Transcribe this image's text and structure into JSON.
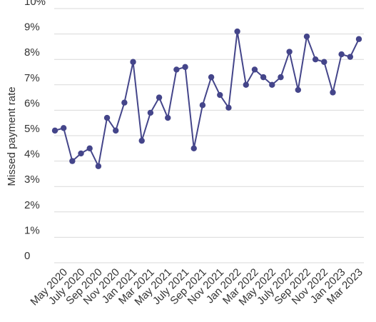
{
  "chart_data": {
    "type": "line",
    "title": "",
    "xlabel": "",
    "ylabel": "Missed payment rate",
    "ylim": [
      0,
      10
    ],
    "y_unit": "%",
    "y_ticks": [
      {
        "value": 0,
        "label": "0"
      },
      {
        "value": 1,
        "label": "1%"
      },
      {
        "value": 2,
        "label": "2%"
      },
      {
        "value": 3,
        "label": "3%"
      },
      {
        "value": 4,
        "label": "4%"
      },
      {
        "value": 5,
        "label": "5%"
      },
      {
        "value": 6,
        "label": "6%"
      },
      {
        "value": 7,
        "label": "7%"
      },
      {
        "value": 8,
        "label": "8%"
      },
      {
        "value": 9,
        "label": "9%"
      },
      {
        "value": 10,
        "label": "10%"
      }
    ],
    "x_tick_labels": [
      {
        "x": "May 2020",
        "label": "May 2020"
      },
      {
        "x": "Jul 2020",
        "label": "July 2020"
      },
      {
        "x": "Sep 2020",
        "label": "Sep 2020"
      },
      {
        "x": "Nov 2020",
        "label": "Nov 2020"
      },
      {
        "x": "Jan 2021",
        "label": "Jan 2021"
      },
      {
        "x": "Mar 2021",
        "label": "Mar 2021"
      },
      {
        "x": "May 2021",
        "label": "May 2021"
      },
      {
        "x": "Jul 2021",
        "label": "July 2021"
      },
      {
        "x": "Sep 2021",
        "label": "Sep 2021"
      },
      {
        "x": "Nov 2021",
        "label": "Nov 2021"
      },
      {
        "x": "Jan 2022",
        "label": "Jan 2022"
      },
      {
        "x": "Mar 2022",
        "label": "Mar 2022"
      },
      {
        "x": "May 2022",
        "label": "May 2022"
      },
      {
        "x": "Jul 2022",
        "label": "July 2022"
      },
      {
        "x": "Sep 2022",
        "label": "Sep 2022"
      },
      {
        "x": "Nov 2022",
        "label": "Nov 2022"
      },
      {
        "x": "Jan 2023",
        "label": "Jan 2023"
      },
      {
        "x": "Mar 2023",
        "label": "Mar 2023"
      }
    ],
    "grid": true,
    "legend": "none",
    "series": [
      {
        "color": "#44458a",
        "x": [
          "Apr 2020",
          "May 2020",
          "Jun 2020",
          "Jul 2020",
          "Aug 2020",
          "Sep 2020",
          "Oct 2020",
          "Nov 2020",
          "Dec 2020",
          "Jan 2021",
          "Feb 2021",
          "Mar 2021",
          "Apr 2021",
          "May 2021",
          "Jun 2021",
          "Jul 2021",
          "Aug 2021",
          "Sep 2021",
          "Oct 2021",
          "Nov 2021",
          "Dec 2021",
          "Jan 2022",
          "Feb 2022",
          "Mar 2022",
          "Apr 2022",
          "May 2022",
          "Jun 2022",
          "Jul 2022",
          "Aug 2022",
          "Sep 2022",
          "Oct 2022",
          "Nov 2022",
          "Dec 2022",
          "Jan 2023",
          "Feb 2023",
          "Mar 2023"
        ],
        "values": [
          5.2,
          5.3,
          4.0,
          4.3,
          4.5,
          3.8,
          5.7,
          5.2,
          6.3,
          7.9,
          4.8,
          5.9,
          6.5,
          5.7,
          7.6,
          7.7,
          4.5,
          6.2,
          7.3,
          6.6,
          6.1,
          9.1,
          7.0,
          7.6,
          7.3,
          7.0,
          7.3,
          8.3,
          6.8,
          8.9,
          8.0,
          7.9,
          6.7,
          8.2,
          8.1,
          8.8
        ]
      }
    ]
  }
}
